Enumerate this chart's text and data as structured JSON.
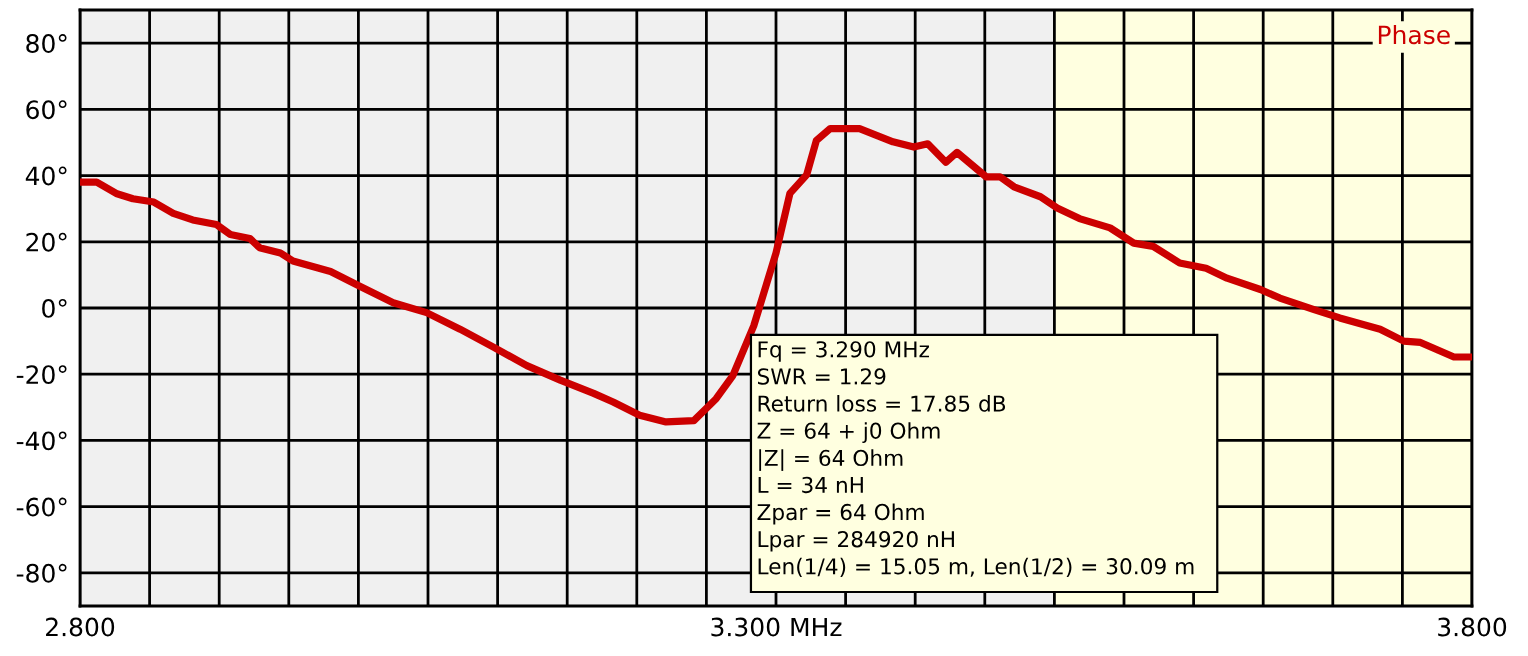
{
  "chart_data": {
    "type": "line",
    "x": [
      2.8,
      2.812,
      2.826,
      2.838,
      2.853,
      2.867,
      2.881,
      2.898,
      2.908,
      2.922,
      2.929,
      2.944,
      2.953,
      2.98,
      3.001,
      3.025,
      3.049,
      3.073,
      3.097,
      3.121,
      3.145,
      3.169,
      3.183,
      3.202,
      3.221,
      3.241,
      3.257,
      3.269,
      3.284,
      3.3,
      3.31,
      3.322,
      3.329,
      3.339,
      3.36,
      3.384,
      3.399,
      3.409,
      3.422,
      3.43,
      3.451,
      3.461,
      3.471,
      3.49,
      3.502,
      3.518,
      3.54,
      3.557,
      3.571,
      3.59,
      3.609,
      3.624,
      3.648,
      3.662,
      3.686,
      3.705,
      3.734,
      3.751,
      3.763,
      3.787,
      3.8
    ],
    "series": [
      {
        "name": "Phase",
        "color": "#cc0000",
        "values": [
          38,
          38,
          34.6,
          33,
          32,
          28.6,
          26.6,
          25.2,
          22.2,
          21,
          18.2,
          16.6,
          14.2,
          11,
          6.6,
          1.6,
          -1.4,
          -6.4,
          -11.8,
          -17.4,
          -21.8,
          -25.8,
          -28.4,
          -32.4,
          -34.4,
          -34,
          -27.4,
          -20.4,
          -5.4,
          16.6,
          34.6,
          40.2,
          50.6,
          54.2,
          54.2,
          50.2,
          48.6,
          49.6,
          44,
          47,
          39.6,
          39.6,
          36.6,
          33.6,
          30.2,
          27,
          24.2,
          19.6,
          18.6,
          13.6,
          12,
          9,
          5.6,
          3,
          -0.4,
          -3,
          -6.4,
          -10,
          -10.4,
          -14.8,
          -14.8
        ]
      }
    ],
    "xlim": [
      2.8,
      3.8
    ],
    "xticks": [
      {
        "value": 2.8,
        "label": "2.800"
      },
      {
        "value": 2.85,
        "label": null
      },
      {
        "value": 2.9,
        "label": null
      },
      {
        "value": 2.95,
        "label": null
      },
      {
        "value": 3.0,
        "label": null
      },
      {
        "value": 3.05,
        "label": null
      },
      {
        "value": 3.1,
        "label": null
      },
      {
        "value": 3.15,
        "label": null
      },
      {
        "value": 3.2,
        "label": null
      },
      {
        "value": 3.25,
        "label": null
      },
      {
        "value": 3.3,
        "label": "3.300 MHz"
      },
      {
        "value": 3.35,
        "label": null
      },
      {
        "value": 3.4,
        "label": null
      },
      {
        "value": 3.45,
        "label": null
      },
      {
        "value": 3.5,
        "label": null
      },
      {
        "value": 3.55,
        "label": null
      },
      {
        "value": 3.6,
        "label": null
      },
      {
        "value": 3.65,
        "label": null
      },
      {
        "value": 3.7,
        "label": null
      },
      {
        "value": 3.75,
        "label": null
      },
      {
        "value": 3.8,
        "label": "3.800"
      }
    ],
    "ylim": [
      -90,
      90
    ],
    "yticks": [
      {
        "value": -80,
        "label": "-80°"
      },
      {
        "value": -60,
        "label": "-60°"
      },
      {
        "value": -40,
        "label": "-40°"
      },
      {
        "value": -20,
        "label": "-20°"
      },
      {
        "value": 0,
        "label": "0°"
      },
      {
        "value": 20,
        "label": "20°"
      },
      {
        "value": 40,
        "label": "40°"
      },
      {
        "value": 60,
        "label": "60°"
      },
      {
        "value": 80,
        "label": "80°"
      }
    ],
    "bands": [
      {
        "axis": "x",
        "from": 3.5,
        "to": 3.8,
        "color": "#ffffe0"
      }
    ],
    "grid": true,
    "legend": "top right",
    "marker": "none",
    "line_style": "solid",
    "annotations": [
      "Fq = 3.290 MHz",
      "SWR = 1.29",
      "Return loss = 17.85 dB",
      "Z = 64 + j0 Ohm",
      "|Z| = 64 Ohm",
      "L = 34 nH",
      "Zpar = 64 Ohm",
      "Lpar = 284920 nH",
      "Len(1/4) = 15.05 m, Len(1/2) = 30.09 m"
    ]
  }
}
